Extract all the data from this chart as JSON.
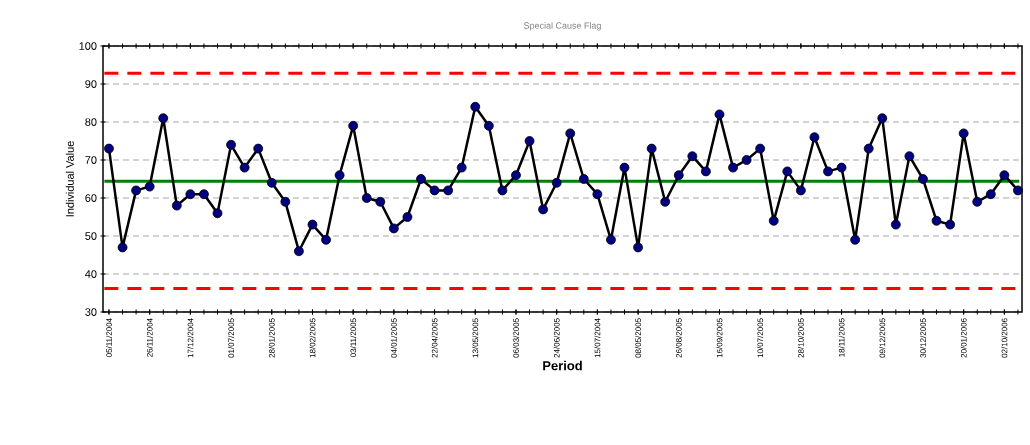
{
  "chart_data": {
    "type": "line",
    "title": "Special Cause Flag",
    "xlabel": "Period",
    "ylabel": "Individual Value",
    "categories": [
      "05/11/2004",
      null,
      null,
      "26/11/2004",
      null,
      null,
      "17/12/2004",
      null,
      null,
      "01/07/2005",
      null,
      null,
      "28/01/2005",
      null,
      null,
      "18/02/2005",
      null,
      null,
      "03/11/2005",
      null,
      null,
      "04/01/2005",
      null,
      null,
      "22/04/2005",
      null,
      null,
      "13/05/2005",
      null,
      null,
      "06/03/2005",
      null,
      null,
      "24/06/2005",
      null,
      null,
      "15/07/2004",
      null,
      null,
      "08/05/2005",
      null,
      null,
      "26/08/2005",
      null,
      null,
      "16/09/2005",
      null,
      null,
      "10/07/2005",
      null,
      null,
      "28/10/2005",
      null,
      null,
      "18/11/2005",
      null,
      null,
      "09/12/2005",
      null,
      null,
      "30/12/2005",
      null,
      null,
      "20/01/2006",
      null,
      null,
      "02/10/2006",
      null
    ],
    "series": [
      {
        "color": "#000000",
        "values": [
          73,
          47,
          62,
          63,
          81,
          58,
          61,
          61,
          56,
          74,
          68,
          73,
          64,
          59,
          46,
          53,
          49,
          66,
          79,
          60,
          59,
          52,
          55,
          65,
          62,
          62,
          68,
          84,
          79,
          62,
          66,
          75,
          57,
          64,
          77,
          65,
          61,
          49,
          68,
          47,
          73,
          59,
          66,
          71,
          67,
          82,
          68,
          70,
          73,
          54,
          67,
          62,
          76,
          67,
          68,
          49,
          73,
          81,
          53,
          71,
          65,
          54,
          53,
          77,
          59,
          61,
          66,
          62
        ]
      }
    ],
    "marker": "circle",
    "line_style": "solid",
    "grid": "y",
    "legend": false,
    "ylim": [
      30,
      100
    ],
    "yticks": [
      30,
      40,
      50,
      60,
      70,
      80,
      90,
      100
    ],
    "ref_lines": [
      {
        "axis": "y",
        "value": 92.8,
        "color": "#ff0000",
        "line_style": "dashed"
      },
      {
        "axis": "y",
        "value": 64.4,
        "color": "#008000",
        "line_style": "solid"
      },
      {
        "axis": "y",
        "value": 36.2,
        "color": "#ff0000",
        "line_style": "dashed"
      }
    ]
  }
}
